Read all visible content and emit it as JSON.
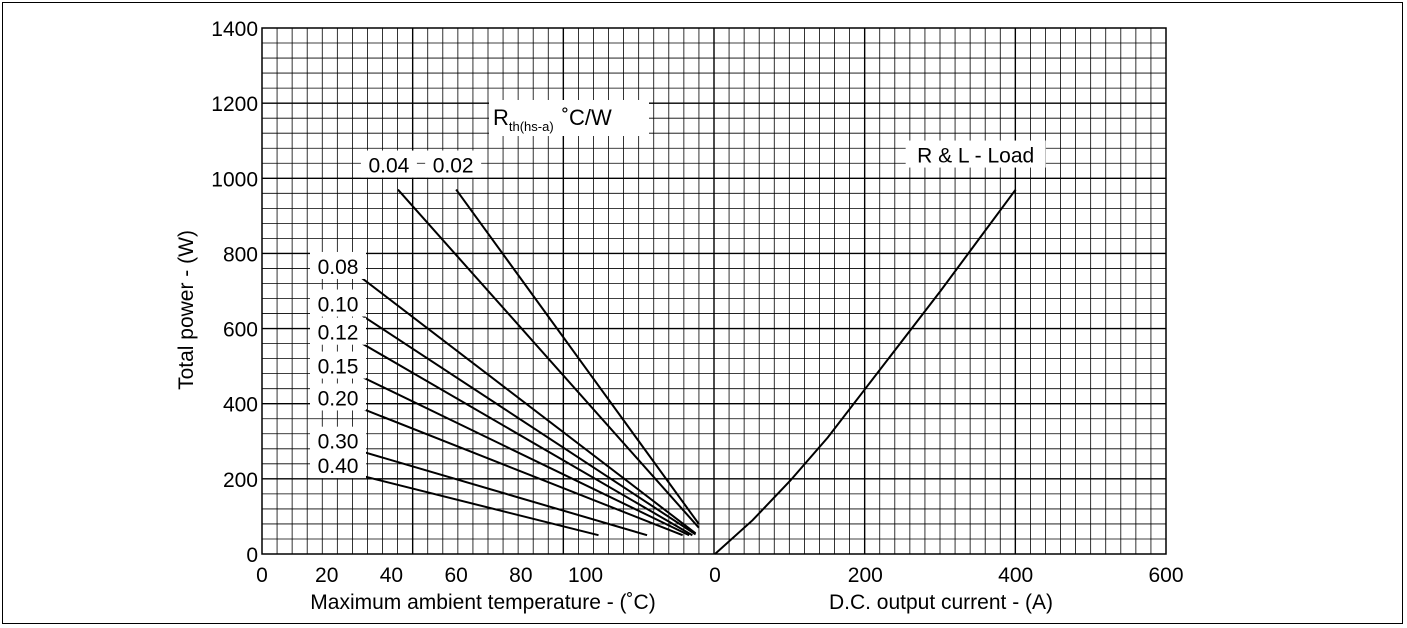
{
  "chart_data": {
    "type": "line",
    "ylabel": "Total power - (W)",
    "ylim": [
      0,
      1400
    ],
    "y_ticks": [
      0,
      200,
      400,
      600,
      800,
      1000,
      1200,
      1400
    ],
    "grid": true,
    "left_panel": {
      "xlabel": "Maximum ambient temperature - (˚C)",
      "x_ticks": [
        "0",
        "20",
        "40",
        "60",
        "80",
        "100",
        "",
        "0"
      ],
      "x_tick_values": [
        0,
        20,
        40,
        60,
        80,
        100,
        120,
        140
      ],
      "xlim": [
        0,
        140
      ],
      "family_title_main": "R",
      "family_title_sub": "th(hs-a)",
      "family_title_unit": "˚C/W",
      "series": [
        {
          "name": "0.02",
          "x": [
            60,
            135
          ],
          "y": [
            970,
            80
          ]
        },
        {
          "name": "0.04",
          "x": [
            42,
            135
          ],
          "y": [
            970,
            70
          ]
        },
        {
          "name": "0.08",
          "x": [
            30,
            134
          ],
          "y": [
            740,
            55
          ]
        },
        {
          "name": "0.10",
          "x": [
            30,
            134
          ],
          "y": [
            640,
            52
          ]
        },
        {
          "name": "0.12",
          "x": [
            30,
            133
          ],
          "y": [
            565,
            50
          ]
        },
        {
          "name": "0.15",
          "x": [
            30,
            132
          ],
          "y": [
            475,
            50
          ]
        },
        {
          "name": "0.20",
          "x": [
            30,
            130
          ],
          "y": [
            390,
            50
          ]
        },
        {
          "name": "0.30",
          "x": [
            30,
            119
          ],
          "y": [
            275,
            50
          ]
        },
        {
          "name": "0.40",
          "x": [
            30,
            104
          ],
          "y": [
            210,
            50
          ]
        }
      ]
    },
    "right_panel": {
      "xlabel": "D.C. output current - (A)",
      "x_ticks": [
        "",
        "200",
        "400",
        "600"
      ],
      "x_tick_values": [
        0,
        200,
        400,
        600
      ],
      "xlim": [
        0,
        600
      ],
      "series": [
        {
          "name": "R & L - Load",
          "x": [
            0,
            50,
            100,
            150,
            200,
            250,
            300,
            350,
            400
          ],
          "y": [
            0,
            90,
            195,
            310,
            440,
            570,
            700,
            835,
            970
          ]
        }
      ]
    }
  }
}
